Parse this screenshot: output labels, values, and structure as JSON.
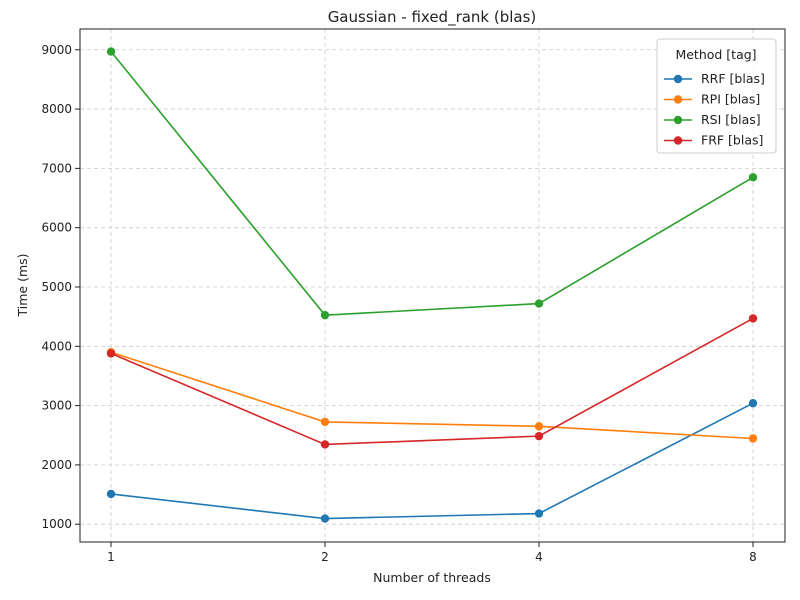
{
  "chart_data": {
    "type": "line",
    "title": "Gaussian - fixed_rank (blas)",
    "xlabel": "Number of threads",
    "ylabel": "Time (ms)",
    "categories": [
      "1",
      "2",
      "4",
      "8"
    ],
    "yticks": [
      "1000",
      "2000",
      "3000",
      "4000",
      "5000",
      "6000",
      "7000",
      "8000",
      "9000"
    ],
    "ylim": [
      700,
      9350
    ],
    "grid": true,
    "legend": {
      "title": "Method [tag]",
      "placement": "top-right"
    },
    "series": [
      {
        "name": "RRF [blas]",
        "color": "#1f77b4",
        "values": [
          1510,
          1095,
          1180,
          3040
        ]
      },
      {
        "name": "RPI [blas]",
        "color": "#ff7f0e",
        "values": [
          3900,
          2725,
          2650,
          2445
        ]
      },
      {
        "name": "RSI [blas]",
        "color": "#2ca02c",
        "values": [
          8970,
          4525,
          4720,
          6850
        ]
      },
      {
        "name": "FRF [blas]",
        "color": "#d62728",
        "values": [
          3880,
          2345,
          2485,
          4470
        ]
      }
    ]
  }
}
